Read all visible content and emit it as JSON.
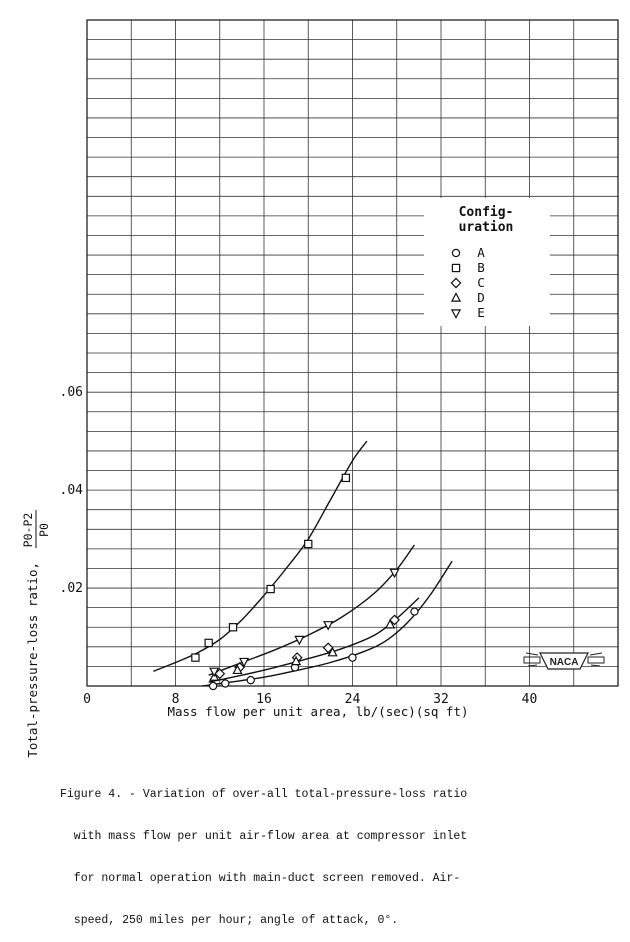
{
  "chart_data": {
    "type": "scatter",
    "xlabel": "Mass flow per unit area, lb/(sec)(sq ft)",
    "ylabel_prefix": "Total-pressure-loss ratio,",
    "ylabel_numerator": "P0-P2",
    "ylabel_denominator": "P0",
    "xlim": [
      0,
      48
    ],
    "ylim": [
      0,
      0.136
    ],
    "x_tick_labels": [
      "0",
      "8",
      "16",
      "24",
      "32",
      "40"
    ],
    "x_tick_values": [
      0,
      8,
      16,
      24,
      32,
      40
    ],
    "y_tick_labels": [
      ".02",
      ".04",
      ".06"
    ],
    "y_tick_values": [
      0.02,
      0.04,
      0.06
    ],
    "grid": true,
    "legend": {
      "title_line1": "Config-",
      "title_line2": "uration",
      "placement": "upper-right"
    },
    "series": [
      {
        "name": "A",
        "marker": "circle",
        "points": [
          [
            11.4,
            0.0
          ],
          [
            12.5,
            0.0005
          ],
          [
            14.8,
            0.0012
          ],
          [
            18.8,
            0.0038
          ],
          [
            24.0,
            0.0058
          ],
          [
            29.6,
            0.0152
          ]
        ],
        "curve": [
          [
            10.4,
            0.0
          ],
          [
            13.0,
            0.0008
          ],
          [
            16.0,
            0.0018
          ],
          [
            19.0,
            0.0032
          ],
          [
            22.0,
            0.0048
          ],
          [
            25.0,
            0.007
          ],
          [
            27.0,
            0.0092
          ],
          [
            29.0,
            0.013
          ],
          [
            31.0,
            0.0185
          ],
          [
            33.0,
            0.0255
          ]
        ]
      },
      {
        "name": "B",
        "marker": "square",
        "points": [
          [
            9.8,
            0.0058
          ],
          [
            11.0,
            0.0088
          ],
          [
            13.2,
            0.012
          ],
          [
            16.6,
            0.0198
          ],
          [
            20.0,
            0.029
          ],
          [
            23.4,
            0.0425
          ]
        ],
        "curve": [
          [
            6.0,
            0.003
          ],
          [
            8.0,
            0.0048
          ],
          [
            10.0,
            0.0068
          ],
          [
            12.0,
            0.0095
          ],
          [
            14.0,
            0.0135
          ],
          [
            16.0,
            0.0185
          ],
          [
            18.0,
            0.024
          ],
          [
            20.0,
            0.03
          ],
          [
            22.0,
            0.038
          ],
          [
            24.0,
            0.046
          ],
          [
            25.3,
            0.05
          ]
        ]
      },
      {
        "name": "C",
        "marker": "diamond",
        "points": [
          [
            12.0,
            0.0025
          ],
          [
            13.8,
            0.0038
          ],
          [
            19.0,
            0.0058
          ],
          [
            21.8,
            0.0078
          ],
          [
            27.8,
            0.0135
          ]
        ],
        "curve": [
          [
            11.0,
            0.0008
          ],
          [
            14.0,
            0.0022
          ],
          [
            17.0,
            0.0038
          ],
          [
            20.0,
            0.0056
          ],
          [
            23.0,
            0.0076
          ],
          [
            26.0,
            0.0104
          ],
          [
            28.0,
            0.0138
          ],
          [
            30.0,
            0.018
          ]
        ]
      },
      {
        "name": "D",
        "marker": "triangle-up",
        "points": [
          [
            11.5,
            0.0018
          ],
          [
            13.6,
            0.0032
          ],
          [
            18.9,
            0.005
          ],
          [
            22.2,
            0.0068
          ],
          [
            27.4,
            0.0125
          ]
        ]
      },
      {
        "name": "E",
        "marker": "triangle-down",
        "points": [
          [
            11.5,
            0.003
          ],
          [
            14.2,
            0.005
          ],
          [
            19.2,
            0.0095
          ],
          [
            21.8,
            0.0125
          ],
          [
            27.8,
            0.0232
          ]
        ],
        "curve": [
          [
            11.0,
            0.0022
          ],
          [
            14.0,
            0.0048
          ],
          [
            17.0,
            0.0074
          ],
          [
            20.0,
            0.0104
          ],
          [
            23.0,
            0.014
          ],
          [
            26.0,
            0.019
          ],
          [
            28.0,
            0.0238
          ],
          [
            29.6,
            0.0288
          ]
        ]
      }
    ],
    "logo_text": "NACA",
    "caption_lines": [
      "Figure 4. - Variation of over-all total-pressure-loss ratio",
      "  with mass flow per unit air-flow area at compressor inlet",
      "  for normal operation with main-duct screen removed. Air-",
      "  speed, 250 miles per hour; angle of attack, 0°."
    ]
  }
}
